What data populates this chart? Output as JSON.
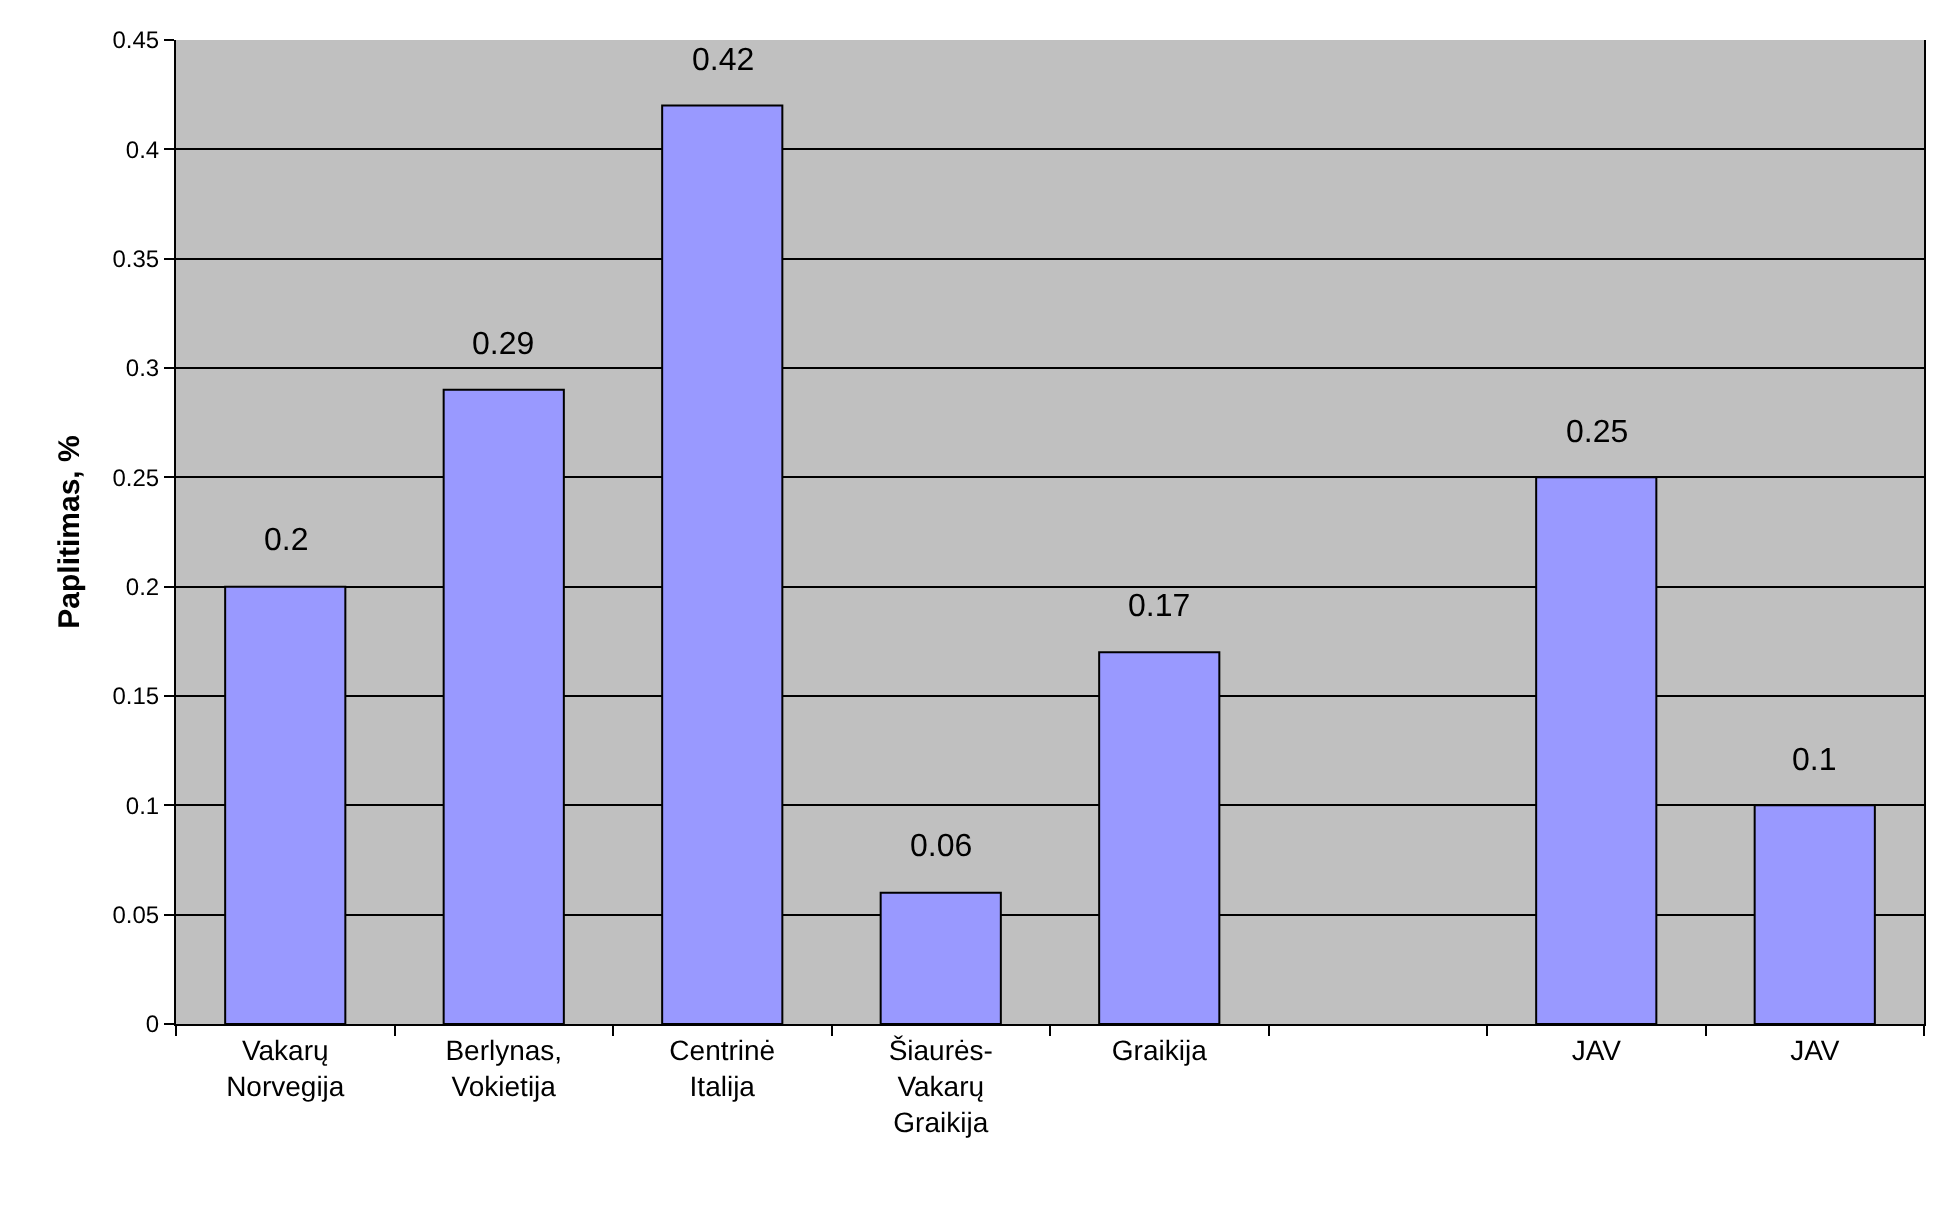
{
  "chart_data": {
    "type": "bar",
    "ylabel": "Paplitimas, %",
    "categories": [
      "Vakarų\nNorvegija",
      "Berlynas,\nVokietija",
      "Centrinė\nItalija",
      "Šiaurės-\nVakarų\nGraikija",
      "Graikija",
      null,
      "JAV",
      "JAV"
    ],
    "values": [
      0.2,
      0.29,
      0.42,
      0.06,
      0.17,
      null,
      0.25,
      0.1
    ],
    "color": "#9999ff",
    "ylim": [
      0,
      0.45
    ],
    "yticks": [
      0,
      0.05,
      0.1,
      0.15,
      0.2,
      0.25,
      0.3,
      0.35,
      0.4,
      0.45
    ],
    "grid": "y",
    "data_labels": true
  }
}
